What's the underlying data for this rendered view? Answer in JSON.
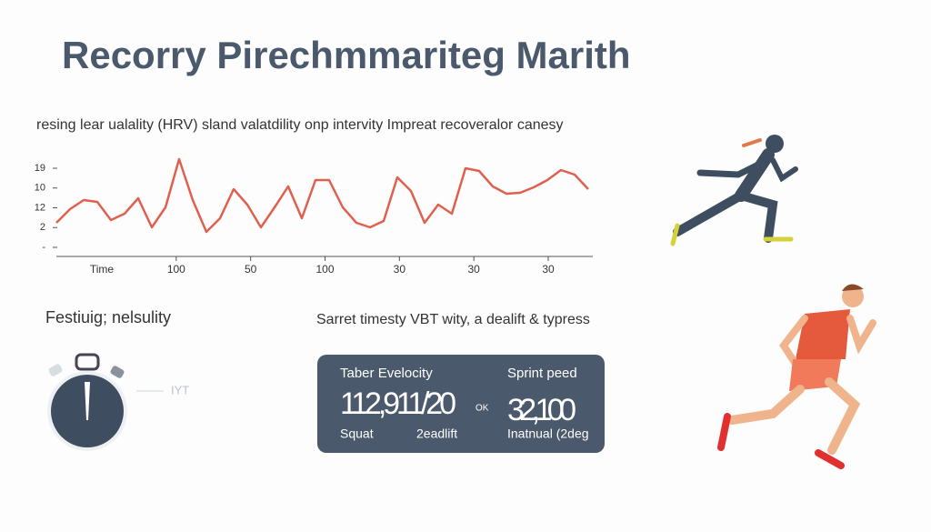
{
  "header": {
    "title": "Recorry Pirechmmariteg Marith"
  },
  "chart": {
    "type": "line",
    "subtitle": "resing lear ualality (HRV) sland valatdility onp intervity Impreat recoveralor canesy",
    "y_labels": [
      "19",
      "10",
      "12",
      "2",
      "-"
    ],
    "x_labels": [
      "Time",
      "100",
      "50",
      "100",
      "30",
      "30",
      "30"
    ],
    "ylim": [
      0,
      100
    ],
    "color": "#e0604f",
    "values": [
      27,
      42,
      52,
      50,
      30,
      37,
      54,
      22,
      44,
      97,
      52,
      17,
      32,
      64,
      47,
      22,
      44,
      67,
      32,
      74,
      74,
      44,
      27,
      22,
      29,
      77,
      62,
      27,
      47,
      37,
      87,
      84,
      67,
      59,
      60,
      66,
      74,
      85,
      80,
      64
    ]
  },
  "left_panel": {
    "heading": "Festiuig; nelsulity",
    "note": "IYT"
  },
  "right_panel": {
    "heading": "Sarret timesty VBT wity, a dealift & typress",
    "card": {
      "label_left": "Taber Evelocity",
      "label_right": "Sprint peed",
      "value_left": "112,911/20",
      "mid": "OK",
      "value_right": "32,100",
      "foot_left": "Squat",
      "foot_mid": "2eadlift",
      "foot_right": "Inatnual (2deg"
    }
  }
}
